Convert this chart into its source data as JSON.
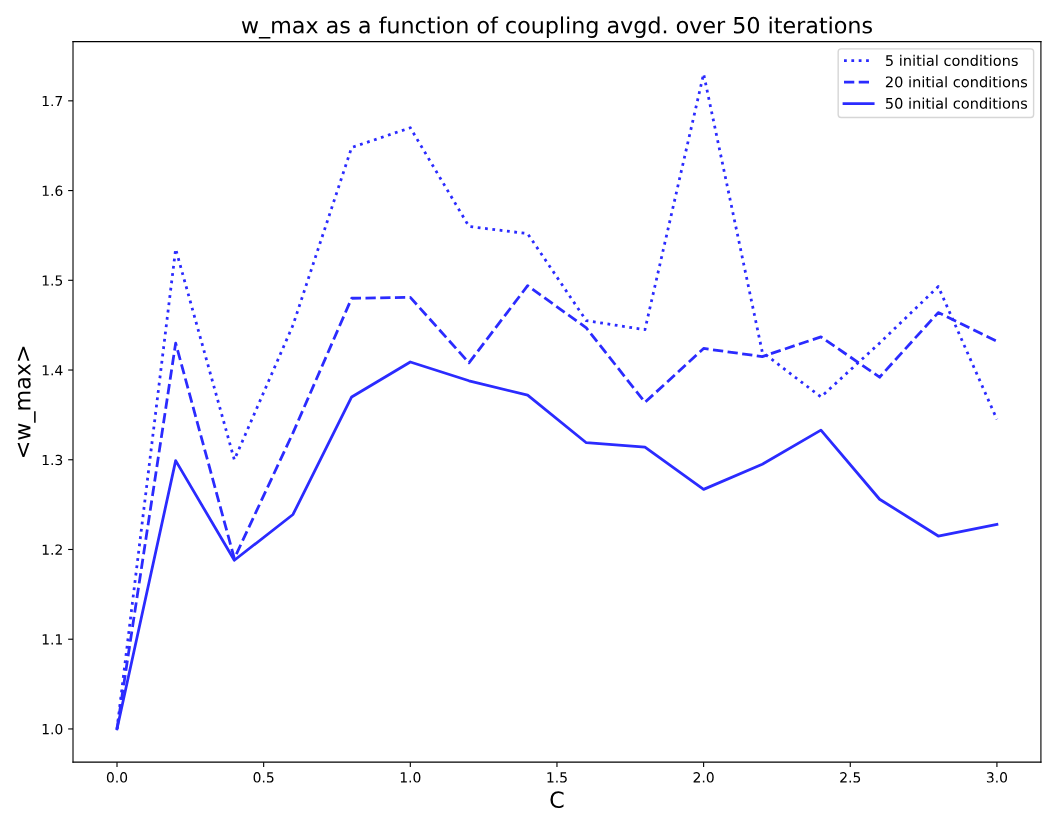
{
  "chart_data": {
    "type": "line",
    "title": "w_max as a function of coupling avgd. over 50 iterations",
    "xlabel": "C",
    "ylabel": "<w_max>",
    "x": [
      0.0,
      0.2,
      0.4,
      0.6,
      0.8,
      1.0,
      1.2,
      1.4,
      1.6,
      1.8,
      2.0,
      2.2,
      2.4,
      2.6,
      2.8,
      3.0
    ],
    "series": [
      {
        "name": "5 initial conditions",
        "color": "#2b2bff",
        "line_style": "dotted",
        "values": [
          1.0,
          1.535,
          1.3,
          1.45,
          1.648,
          1.67,
          1.56,
          1.552,
          1.455,
          1.445,
          1.73,
          1.42,
          1.37,
          1.43,
          1.493,
          1.345
        ]
      },
      {
        "name": "20 initial conditions",
        "color": "#2b2bff",
        "line_style": "dashed",
        "values": [
          1.0,
          1.43,
          1.19,
          1.33,
          1.48,
          1.481,
          1.408,
          1.494,
          1.447,
          1.364,
          1.424,
          1.415,
          1.437,
          1.392,
          1.464,
          1.432
        ]
      },
      {
        "name": "50 initial conditions",
        "color": "#2b2bff",
        "line_style": "solid",
        "values": [
          1.0,
          1.299,
          1.188,
          1.239,
          1.37,
          1.409,
          1.388,
          1.372,
          1.319,
          1.314,
          1.267,
          1.295,
          1.333,
          1.256,
          1.215,
          1.228
        ]
      }
    ],
    "xlim": [
      -0.15,
      3.15
    ],
    "ylim": [
      0.963,
      1.766
    ],
    "xticks": [
      {
        "value": 0,
        "label": "0.0"
      },
      {
        "value": 0.5,
        "label": "0.5"
      },
      {
        "value": 1,
        "label": "1.0"
      },
      {
        "value": 1.5,
        "label": "1.5"
      },
      {
        "value": 2,
        "label": "2.0"
      },
      {
        "value": 2.5,
        "label": "2.5"
      },
      {
        "value": 3,
        "label": "3.0"
      }
    ],
    "yticks": [
      {
        "value": 1,
        "label": "1.0"
      },
      1.1,
      1.2,
      1.3,
      1.4,
      1.5,
      1.6,
      1.7
    ],
    "grid": false,
    "legend": "top right",
    "marker": "none"
  }
}
